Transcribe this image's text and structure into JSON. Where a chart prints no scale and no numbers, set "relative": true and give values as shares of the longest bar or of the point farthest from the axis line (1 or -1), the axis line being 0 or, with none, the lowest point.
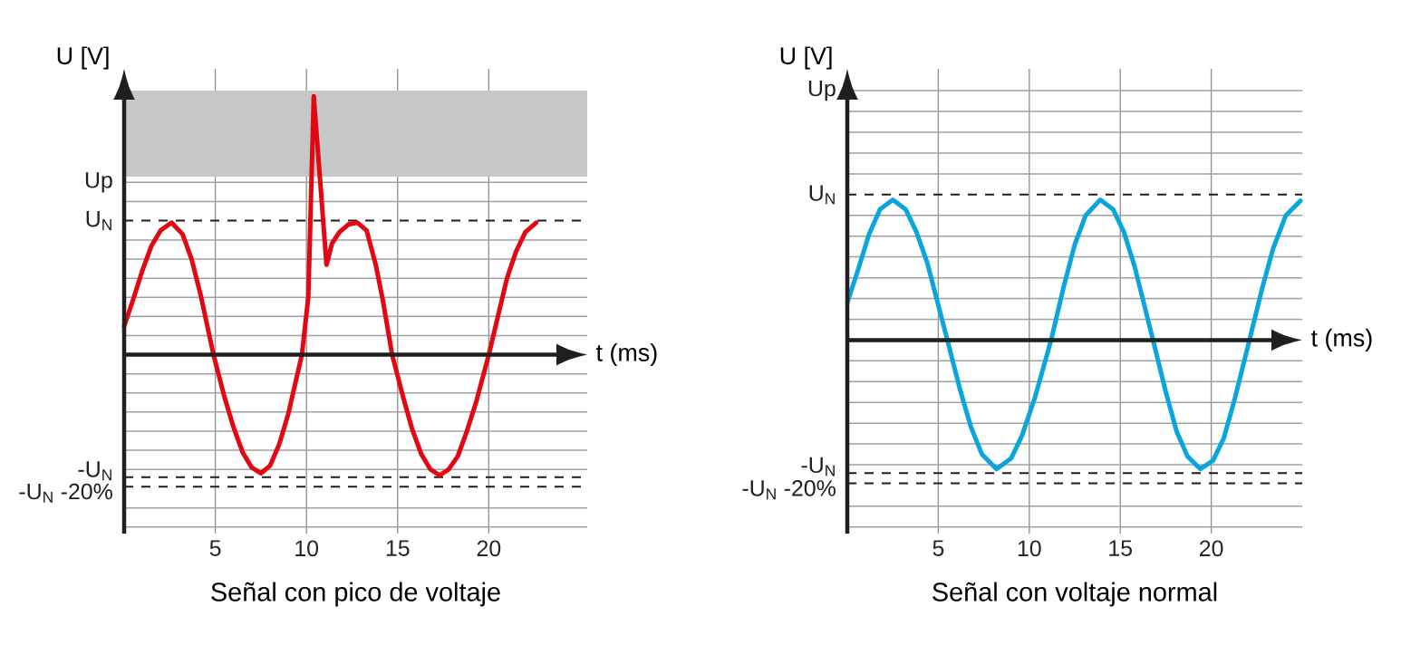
{
  "chart_data": [
    {
      "type": "line",
      "title": "Señal con pico de voltaje",
      "xlabel": "t (ms)",
      "ylabel": "U [V]",
      "relative": true,
      "xlim": [
        0,
        25.4
      ],
      "xticks": [
        5,
        10,
        15,
        20
      ],
      "grid": "x",
      "bands": [
        {
          "axis": "y",
          "from": 0.689,
          "to": 1.022,
          "color": "#c6c7c9"
        }
      ],
      "ref_lines": [
        {
          "axis": "y",
          "value": 0.667,
          "label": "Up",
          "color": "#a0a0a0",
          "line_style": "solid"
        },
        {
          "axis": "y",
          "value": 0.519,
          "label": "U$_{N}$",
          "color": "#1d1d1b",
          "line_style": "dashed"
        },
        {
          "axis": "y",
          "value": -0.474,
          "label": "-U$_{N}$",
          "color": "#1d1d1b",
          "line_style": "dashed"
        },
        {
          "axis": "y",
          "value": -0.511,
          "label": "-U$_{N}$ -20%",
          "color": "#1d1d1b",
          "line_style": "dashed"
        },
        {
          "axis": "y",
          "value": -0.667,
          "color": "#a0a0a0",
          "line_style": "solid"
        },
        {
          "axis": "y",
          "value": -0.593,
          "color": "#a0a0a0",
          "line_style": "solid"
        },
        {
          "axis": "y",
          "value": -0.444,
          "color": "#a0a0a0",
          "line_style": "solid"
        },
        {
          "axis": "y",
          "value": -0.37,
          "color": "#a0a0a0",
          "line_style": "solid"
        },
        {
          "axis": "y",
          "value": -0.296,
          "color": "#a0a0a0",
          "line_style": "solid"
        },
        {
          "axis": "y",
          "value": -0.222,
          "color": "#a0a0a0",
          "line_style": "solid"
        },
        {
          "axis": "y",
          "value": -0.148,
          "color": "#a0a0a0",
          "line_style": "solid"
        },
        {
          "axis": "y",
          "value": -0.074,
          "color": "#a0a0a0",
          "line_style": "solid"
        },
        {
          "axis": "y",
          "value": 0.074,
          "color": "#a0a0a0",
          "line_style": "solid"
        },
        {
          "axis": "y",
          "value": 0.148,
          "color": "#a0a0a0",
          "line_style": "solid"
        },
        {
          "axis": "y",
          "value": 0.222,
          "color": "#a0a0a0",
          "line_style": "solid"
        },
        {
          "axis": "y",
          "value": 0.296,
          "color": "#a0a0a0",
          "line_style": "solid"
        },
        {
          "axis": "y",
          "value": 0.37,
          "color": "#a0a0a0",
          "line_style": "solid"
        },
        {
          "axis": "y",
          "value": 0.444,
          "color": "#a0a0a0",
          "line_style": "solid"
        },
        {
          "axis": "y",
          "value": 0.593,
          "color": "#a0a0a0",
          "line_style": "solid"
        }
      ],
      "series": [
        {
          "color": "#e30613",
          "x": [
            0,
            0.5,
            1,
            1.5,
            2,
            2.6,
            3.2,
            3.7,
            4.2,
            4.9,
            5.5,
            6,
            6.5,
            7,
            7.5,
            8,
            8.5,
            9,
            9.75,
            10.1,
            10.4,
            11.1,
            11.4,
            11.8,
            12.3,
            12.8,
            13.3,
            13.8,
            14.2,
            14.7,
            15.3,
            15.8,
            16.3,
            16.8,
            17.3,
            17.8,
            18.3,
            18.8,
            19.3,
            20,
            20.5,
            21,
            21.5,
            22,
            22.6
          ],
          "values": [
            0.11,
            0.215,
            0.326,
            0.422,
            0.481,
            0.511,
            0.467,
            0.37,
            0.23,
            0,
            -0.163,
            -0.281,
            -0.378,
            -0.437,
            -0.459,
            -0.43,
            -0.348,
            -0.23,
            0,
            0.222,
            1,
            0.348,
            0.43,
            0.474,
            0.504,
            0.511,
            0.481,
            0.348,
            0.207,
            0,
            -0.163,
            -0.289,
            -0.385,
            -0.444,
            -0.467,
            -0.444,
            -0.393,
            -0.296,
            -0.185,
            0,
            0.148,
            0.296,
            0.4,
            0.474,
            0.511
          ]
        }
      ]
    },
    {
      "type": "line",
      "title": "Señal con  voltaje normal",
      "xlabel": "t (ms)",
      "ylabel": "U [V]",
      "relative": true,
      "xlim": [
        0,
        25
      ],
      "xticks": [
        5,
        10,
        15,
        20
      ],
      "grid": "x",
      "ref_lines": [
        {
          "axis": "y",
          "value": 1.778,
          "label": "Up",
          "color": "#a0a0a0",
          "line_style": "solid"
        },
        {
          "axis": "y",
          "value": 1.037,
          "label": "U$_{N}$",
          "color": "#1d1d1b",
          "line_style": "dashed"
        },
        {
          "axis": "y",
          "value": -0.948,
          "label": "-U$_{N}$",
          "color": "#1d1d1b",
          "line_style": "dashed"
        },
        {
          "axis": "y",
          "value": -1.022,
          "label": "-U$_{N}$ -20%",
          "color": "#1d1d1b",
          "line_style": "dashed"
        },
        {
          "axis": "y",
          "value": -1.333,
          "color": "#a0a0a0",
          "line_style": "solid"
        },
        {
          "axis": "y",
          "value": -1.185,
          "color": "#a0a0a0",
          "line_style": "solid"
        },
        {
          "axis": "y",
          "value": -0.889,
          "color": "#a0a0a0",
          "line_style": "solid"
        },
        {
          "axis": "y",
          "value": -0.741,
          "color": "#a0a0a0",
          "line_style": "solid"
        },
        {
          "axis": "y",
          "value": -0.593,
          "color": "#a0a0a0",
          "line_style": "solid"
        },
        {
          "axis": "y",
          "value": -0.444,
          "color": "#a0a0a0",
          "line_style": "solid"
        },
        {
          "axis": "y",
          "value": -0.296,
          "color": "#a0a0a0",
          "line_style": "solid"
        },
        {
          "axis": "y",
          "value": -0.148,
          "color": "#a0a0a0",
          "line_style": "solid"
        },
        {
          "axis": "y",
          "value": 0.148,
          "color": "#a0a0a0",
          "line_style": "solid"
        },
        {
          "axis": "y",
          "value": 0.296,
          "color": "#a0a0a0",
          "line_style": "solid"
        },
        {
          "axis": "y",
          "value": 0.444,
          "color": "#a0a0a0",
          "line_style": "solid"
        },
        {
          "axis": "y",
          "value": 0.593,
          "color": "#a0a0a0",
          "line_style": "solid"
        },
        {
          "axis": "y",
          "value": 0.741,
          "color": "#a0a0a0",
          "line_style": "solid"
        },
        {
          "axis": "y",
          "value": 0.889,
          "color": "#a0a0a0",
          "line_style": "solid"
        },
        {
          "axis": "y",
          "value": 1.185,
          "color": "#a0a0a0",
          "line_style": "solid"
        },
        {
          "axis": "y",
          "value": 1.333,
          "color": "#a0a0a0",
          "line_style": "solid"
        },
        {
          "axis": "y",
          "value": 1.481,
          "color": "#a0a0a0",
          "line_style": "solid"
        },
        {
          "axis": "y",
          "value": 1.63,
          "color": "#a0a0a0",
          "line_style": "solid"
        }
      ],
      "series": [
        {
          "color": "#0aa5dc",
          "x": [
            0,
            0.6,
            1.2,
            1.8,
            2.5,
            3.2,
            3.8,
            4.4,
            5.5,
            6.2,
            6.8,
            7.4,
            8.2,
            9.0,
            9.6,
            10.3,
            11.2,
            11.9,
            12.5,
            13.1,
            13.9,
            14.6,
            15.2,
            15.8,
            16.8,
            17.5,
            18.1,
            18.7,
            19.4,
            20.1,
            20.7,
            21.3,
            22.1,
            22.8,
            23.4,
            24.1,
            24.9
          ],
          "values": [
            0.267,
            0.504,
            0.756,
            0.933,
            1,
            0.933,
            0.77,
            0.548,
            0,
            -0.356,
            -0.622,
            -0.815,
            -0.919,
            -0.844,
            -0.681,
            -0.415,
            0,
            0.385,
            0.681,
            0.889,
            1,
            0.933,
            0.77,
            0.519,
            0,
            -0.37,
            -0.652,
            -0.83,
            -0.919,
            -0.859,
            -0.696,
            -0.415,
            0,
            0.37,
            0.652,
            0.889,
            0.993
          ]
        }
      ]
    }
  ]
}
